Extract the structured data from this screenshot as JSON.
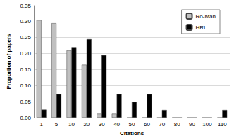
{
  "chart_data": {
    "type": "bar",
    "x_label": "Citations",
    "y_label": "Proportion of papers",
    "categories": [
      "1",
      "5",
      "10",
      "20",
      "30",
      "40",
      "50",
      "60",
      "70",
      "80",
      "90",
      "100",
      "110"
    ],
    "series": [
      {
        "name": "Ro-Man",
        "color": "#c0c0c0",
        "values": [
          0.305,
          0.295,
          0.21,
          0.165,
          0.012,
          0.012,
          0,
          0,
          0,
          0,
          0,
          0,
          0
        ]
      },
      {
        "name": "HRI",
        "color": "#000000",
        "values": [
          0.025,
          0.073,
          0.22,
          0.245,
          0.195,
          0.073,
          0.049,
          0.073,
          0.024,
          0,
          0,
          0,
          0.024
        ]
      }
    ],
    "ylim": [
      0,
      0.35
    ],
    "yticks": [
      {
        "value": 0,
        "label": "0.00"
      },
      {
        "value": 0.05,
        "label": "0.05"
      },
      {
        "value": 0.1,
        "label": "0.10"
      },
      {
        "value": 0.15,
        "label": "0.15"
      },
      {
        "value": 0.2,
        "label": "0.20"
      },
      {
        "value": 0.25,
        "label": "0.25"
      },
      {
        "value": 0.3,
        "label": "0.30"
      },
      {
        "value": 0.35,
        "label": "0.35"
      }
    ],
    "grid": true,
    "legend": "upper right"
  }
}
